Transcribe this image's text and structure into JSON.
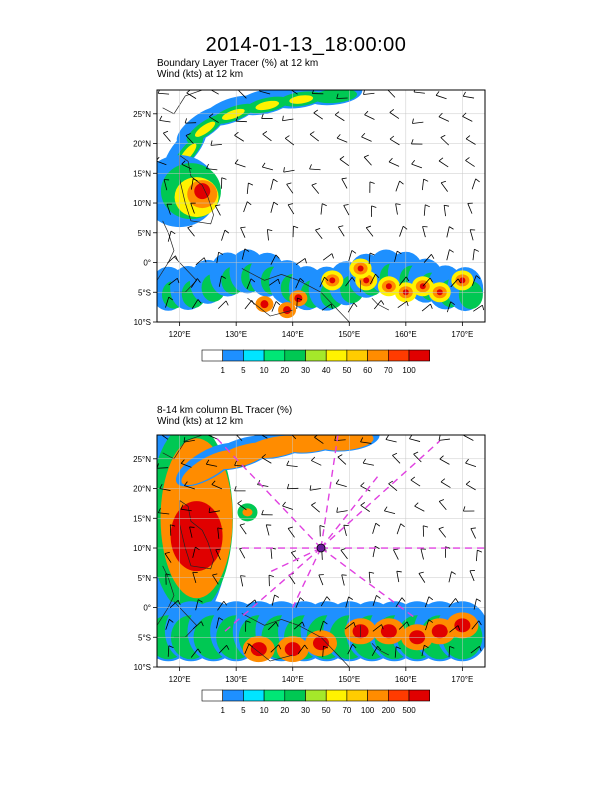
{
  "title": "2014-01-13_18:00:00",
  "panels": [
    {
      "subtitle_line1": "Boundary Layer Tracer   (%)     at   12 km",
      "subtitle_line2": "Wind   (kts)     at   12 km",
      "lat_labels": [
        "25°N",
        "20°N",
        "15°N",
        "10°N",
        "5°N",
        "0°",
        "5°S",
        "10°S"
      ],
      "lon_labels": [
        "120°E",
        "130°E",
        "140°E",
        "150°E",
        "160°E",
        "170°E"
      ],
      "colorbar_labels": [
        "1",
        "5",
        "10",
        "20",
        "30",
        "40",
        "50",
        "60",
        "70",
        "100"
      ],
      "colorbar_colors": [
        "#ffffff",
        "#1e90ff",
        "#00e5ff",
        "#00e676",
        "#00c853",
        "#a5e82a",
        "#fff200",
        "#ffcc00",
        "#ff8c00",
        "#ff3b00",
        "#e00000"
      ]
    },
    {
      "subtitle_line1": "8-14 km column BL Tracer   (%)",
      "subtitle_line2": "Wind   (kts)     at   12 km",
      "lat_labels": [
        "25°N",
        "20°N",
        "15°N",
        "10°N",
        "5°N",
        "0°",
        "5°S",
        "10°S"
      ],
      "lon_labels": [
        "120°E",
        "130°E",
        "140°E",
        "150°E",
        "160°E",
        "170°E"
      ],
      "colorbar_labels": [
        "1",
        "5",
        "10",
        "20",
        "30",
        "50",
        "70",
        "100",
        "200",
        "500"
      ],
      "colorbar_colors": [
        "#ffffff",
        "#1e90ff",
        "#00e5ff",
        "#00e676",
        "#00c853",
        "#a5e82a",
        "#fff200",
        "#ffcc00",
        "#ff8c00",
        "#ff3b00",
        "#e00000"
      ]
    }
  ]
}
